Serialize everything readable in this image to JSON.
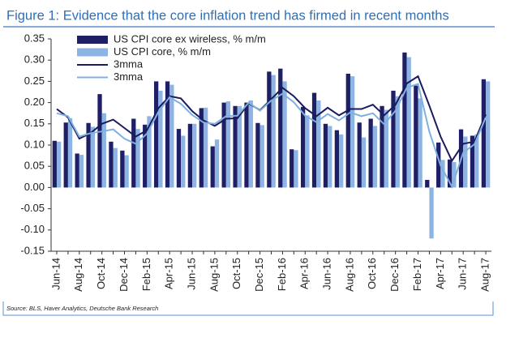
{
  "chart_data": {
    "type": "bar-line",
    "title": "Figure 1: Evidence that the core inflation trend has firmed in recent months",
    "source": "Source: BLS, Haver Analytics, Deutsche Bank Research",
    "categories": [
      "Jun-14",
      null,
      "Aug-14",
      null,
      "Oct-14",
      null,
      "Dec-14",
      null,
      "Feb-15",
      null,
      "Apr-15",
      null,
      "Jun-15",
      null,
      "Aug-15",
      null,
      "Oct-15",
      null,
      "Dec-15",
      null,
      "Feb-16",
      null,
      "Apr-16",
      null,
      "Jun-16",
      null,
      "Aug-16",
      null,
      "Oct-16",
      null,
      "Dec-16",
      null,
      "Feb-17",
      null,
      "Apr-17",
      null,
      "Jun-17",
      null,
      "Aug-17"
    ],
    "series": [
      {
        "name": "US CPI core ex wireless, % m/m",
        "kind": "bar",
        "color": "#1f1f66",
        "values": [
          0.11,
          0.153,
          0.08,
          0.152,
          0.22,
          0.108,
          0.087,
          0.162,
          0.148,
          0.25,
          0.25,
          0.138,
          0.15,
          0.187,
          0.097,
          0.2,
          0.192,
          0.2,
          0.152,
          0.273,
          0.28,
          0.09,
          0.19,
          0.223,
          0.15,
          0.135,
          0.268,
          0.153,
          0.162,
          0.192,
          0.228,
          0.318,
          0.24,
          0.018,
          0.106,
          0.066,
          0.137,
          0.122,
          0.255
        ]
      },
      {
        "name": "US CPI core, % m/m",
        "kind": "bar",
        "color": "#8db4e2",
        "values": [
          0.108,
          0.163,
          0.077,
          0.143,
          0.175,
          0.093,
          0.076,
          0.138,
          0.168,
          0.228,
          0.242,
          0.122,
          0.15,
          0.188,
          0.113,
          0.203,
          0.192,
          0.205,
          0.147,
          0.265,
          0.25,
          0.088,
          0.17,
          0.205,
          0.145,
          0.125,
          0.262,
          0.118,
          0.145,
          0.183,
          0.215,
          0.307,
          0.21,
          -0.12,
          0.065,
          0.06,
          0.12,
          0.125,
          0.25
        ]
      },
      {
        "name": "3mma",
        "kind": "line",
        "color": "#1a1a5e",
        "values": [
          0.185,
          0.165,
          0.115,
          0.128,
          0.15,
          0.16,
          0.14,
          0.12,
          0.135,
          0.187,
          0.215,
          0.21,
          0.18,
          0.158,
          0.145,
          0.162,
          0.163,
          0.198,
          0.182,
          0.208,
          0.235,
          0.215,
          0.187,
          0.168,
          0.188,
          0.17,
          0.185,
          0.185,
          0.195,
          0.17,
          0.195,
          0.245,
          0.262,
          0.193,
          0.12,
          0.063,
          0.103,
          0.108,
          0.172
        ]
      },
      {
        "name": "3mma",
        "kind": "line",
        "color": "#7fb0e0",
        "values": [
          0.175,
          0.168,
          0.12,
          0.128,
          0.132,
          0.137,
          0.115,
          0.103,
          0.127,
          0.178,
          0.213,
          0.197,
          0.171,
          0.153,
          0.15,
          0.168,
          0.169,
          0.2,
          0.181,
          0.205,
          0.221,
          0.201,
          0.169,
          0.154,
          0.173,
          0.158,
          0.177,
          0.168,
          0.175,
          0.149,
          0.181,
          0.235,
          0.244,
          0.132,
          0.052,
          0.002,
          0.082,
          0.102,
          0.165
        ]
      }
    ],
    "ylim": [
      -0.15,
      0.35
    ],
    "yticks": [
      0.35,
      {
        "value": 0.3,
        "label": "0.30"
      },
      0.25,
      {
        "value": 0.2,
        "label": "0.20"
      },
      0.15,
      {
        "value": 0.1,
        "label": "0.10"
      },
      0.05,
      {
        "value": 0,
        "label": "0.00"
      },
      -0.05,
      {
        "value": -0.1,
        "label": "-0.10"
      },
      -0.15
    ],
    "grid": false,
    "legend": "upper left"
  }
}
